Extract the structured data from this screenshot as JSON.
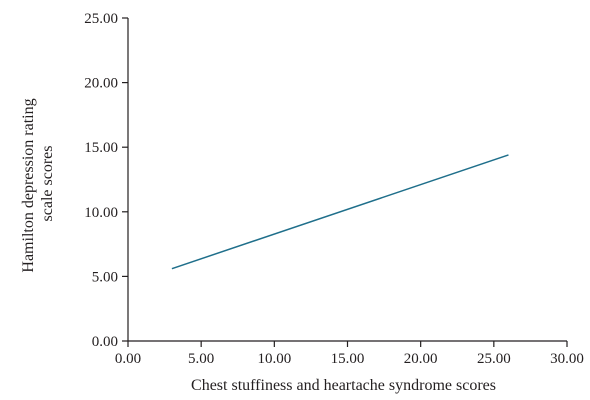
{
  "chart_data": {
    "type": "line",
    "title": "",
    "xlabel": "Chest stuffiness and heartache syndrome scores",
    "ylabel_lines": [
      "Hamilton depression rating",
      "scale scores"
    ],
    "xlim": [
      0,
      30
    ],
    "ylim": [
      0,
      25
    ],
    "x_ticks": [
      0,
      5,
      10,
      15,
      20,
      25,
      30
    ],
    "x_tick_labels": [
      "0.00",
      "5.00",
      "10.00",
      "15.00",
      "20.00",
      "25.00",
      "30.00"
    ],
    "y_ticks": [
      0,
      5,
      10,
      15,
      20,
      25
    ],
    "y_tick_labels": [
      "0.00",
      "5.00",
      "10.00",
      "15.00",
      "20.00",
      "25.00"
    ],
    "grid": false,
    "legend": "none",
    "series": [
      {
        "color": "#1f6f8b",
        "x": [
          3,
          26
        ],
        "y": [
          5.6,
          14.4
        ]
      }
    ]
  }
}
